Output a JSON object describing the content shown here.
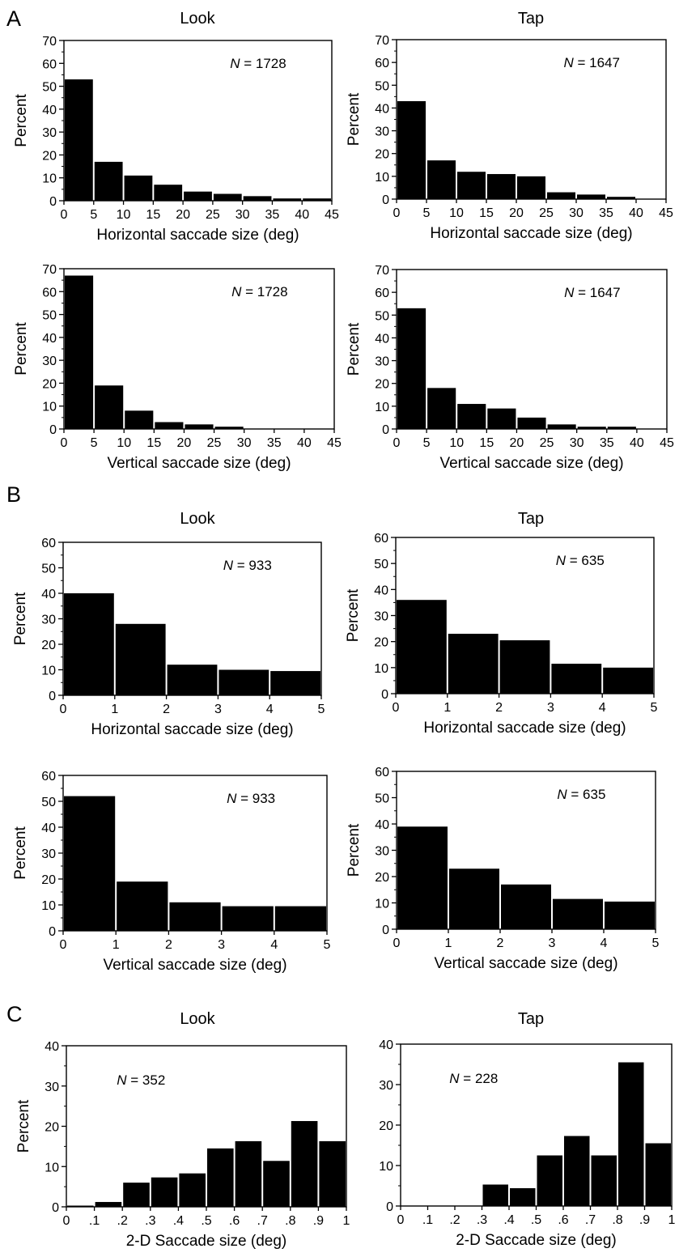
{
  "sections": [
    {
      "letter": "A",
      "titles": [
        "Look",
        "Tap"
      ]
    },
    {
      "letter": "B",
      "titles": [
        "Look",
        "Tap"
      ]
    },
    {
      "letter": "C",
      "titles": [
        "Look",
        "Tap"
      ]
    }
  ],
  "chart_data": [
    {
      "id": "A-look-horizontal",
      "type": "bar",
      "section": "A",
      "panel_title": "Look",
      "xlabel": "Horizontal saccade size (deg)",
      "ylabel": "Percent",
      "xlim": [
        0,
        45
      ],
      "ylim": [
        0,
        70
      ],
      "xticks": [
        "0",
        "5",
        "10",
        "15",
        "20",
        "25",
        "30",
        "35",
        "40",
        "45"
      ],
      "yticks": [
        "0",
        "10",
        "20",
        "30",
        "40",
        "50",
        "60",
        "70"
      ],
      "bin_edges": [
        0,
        5,
        10,
        15,
        20,
        25,
        30,
        35,
        40,
        45
      ],
      "values": [
        53,
        17,
        11,
        7,
        4,
        3,
        2,
        1,
        1
      ],
      "annotation": {
        "label": "N",
        "value": "= 1728"
      }
    },
    {
      "id": "A-tap-horizontal",
      "type": "bar",
      "section": "A",
      "panel_title": "Tap",
      "xlabel": "Horizontal saccade size (deg)",
      "ylabel": "Percent",
      "xlim": [
        0,
        45
      ],
      "ylim": [
        0,
        70
      ],
      "xticks": [
        "0",
        "5",
        "10",
        "15",
        "20",
        "25",
        "30",
        "35",
        "40",
        "45"
      ],
      "yticks": [
        "0",
        "10",
        "20",
        "30",
        "40",
        "50",
        "60",
        "70"
      ],
      "bin_edges": [
        0,
        5,
        10,
        15,
        20,
        25,
        30,
        35,
        40,
        45
      ],
      "values": [
        43,
        17,
        12,
        11,
        10,
        3,
        2,
        1,
        0
      ],
      "annotation": {
        "label": "N",
        "value": "= 1647"
      }
    },
    {
      "id": "A-look-vertical",
      "type": "bar",
      "section": "A",
      "panel_title": "",
      "xlabel": "Vertical saccade size (deg)",
      "ylabel": "Percent",
      "xlim": [
        0,
        45
      ],
      "ylim": [
        0,
        70
      ],
      "xticks": [
        "0",
        "5",
        "10",
        "15",
        "20",
        "25",
        "30",
        "35",
        "40",
        "45"
      ],
      "yticks": [
        "0",
        "10",
        "20",
        "30",
        "40",
        "50",
        "60",
        "70"
      ],
      "bin_edges": [
        0,
        5,
        10,
        15,
        20,
        25,
        30,
        35,
        40,
        45
      ],
      "values": [
        67,
        19,
        8,
        3,
        2,
        1,
        0,
        0,
        0
      ],
      "annotation": {
        "label": "N",
        "value": "= 1728"
      }
    },
    {
      "id": "A-tap-vertical",
      "type": "bar",
      "section": "A",
      "panel_title": "",
      "xlabel": "Vertical saccade size (deg)",
      "ylabel": "Percent",
      "xlim": [
        0,
        45
      ],
      "ylim": [
        0,
        70
      ],
      "xticks": [
        "0",
        "5",
        "10",
        "15",
        "20",
        "25",
        "30",
        "35",
        "40",
        "45"
      ],
      "yticks": [
        "0",
        "10",
        "20",
        "30",
        "40",
        "50",
        "60",
        "70"
      ],
      "bin_edges": [
        0,
        5,
        10,
        15,
        20,
        25,
        30,
        35,
        40,
        45
      ],
      "values": [
        53,
        18,
        11,
        9,
        5,
        2,
        1,
        1,
        0
      ],
      "annotation": {
        "label": "N",
        "value": "= 1647"
      }
    },
    {
      "id": "B-look-horizontal",
      "type": "bar",
      "section": "B",
      "panel_title": "Look",
      "xlabel": "Horizontal saccade size (deg)",
      "ylabel": "Percent",
      "xlim": [
        0,
        5
      ],
      "ylim": [
        0,
        60
      ],
      "xticks": [
        "0",
        "1",
        "2",
        "3",
        "4",
        "5"
      ],
      "yticks": [
        "0",
        "10",
        "20",
        "30",
        "40",
        "50",
        "60"
      ],
      "bin_edges": [
        0,
        1,
        2,
        3,
        4,
        5
      ],
      "values": [
        40,
        28,
        12,
        10,
        9.5
      ],
      "annotation": {
        "label": "N",
        "value": "= 933"
      }
    },
    {
      "id": "B-tap-horizontal",
      "type": "bar",
      "section": "B",
      "panel_title": "Tap",
      "xlabel": "Horizontal saccade size (deg)",
      "ylabel": "Percent",
      "xlim": [
        0,
        5
      ],
      "ylim": [
        0,
        60
      ],
      "xticks": [
        "0",
        "1",
        "2",
        "3",
        "4",
        "5"
      ],
      "yticks": [
        "0",
        "10",
        "20",
        "30",
        "40",
        "50",
        "60"
      ],
      "bin_edges": [
        0,
        1,
        2,
        3,
        4,
        5
      ],
      "values": [
        36,
        23,
        20.5,
        11.5,
        10
      ],
      "annotation": {
        "label": "N",
        "value": "= 635"
      }
    },
    {
      "id": "B-look-vertical",
      "type": "bar",
      "section": "B",
      "panel_title": "",
      "xlabel": "Vertical saccade size (deg)",
      "ylabel": "Percent",
      "xlim": [
        0,
        5
      ],
      "ylim": [
        0,
        60
      ],
      "xticks": [
        "0",
        "1",
        "2",
        "3",
        "4",
        "5"
      ],
      "yticks": [
        "0",
        "10",
        "20",
        "30",
        "40",
        "50",
        "60"
      ],
      "bin_edges": [
        0,
        1,
        2,
        3,
        4,
        5
      ],
      "values": [
        52,
        19,
        11,
        9.5,
        9.5
      ],
      "annotation": {
        "label": "N",
        "value": "= 933"
      }
    },
    {
      "id": "B-tap-vertical",
      "type": "bar",
      "section": "B",
      "panel_title": "",
      "xlabel": "Vertical saccade size (deg)",
      "ylabel": "Percent",
      "xlim": [
        0,
        5
      ],
      "ylim": [
        0,
        60
      ],
      "xticks": [
        "0",
        "1",
        "2",
        "3",
        "4",
        "5"
      ],
      "yticks": [
        "0",
        "10",
        "20",
        "30",
        "40",
        "50",
        "60"
      ],
      "bin_edges": [
        0,
        1,
        2,
        3,
        4,
        5
      ],
      "values": [
        39,
        23,
        17,
        11.5,
        10.5
      ],
      "annotation": {
        "label": "N",
        "value": "= 635"
      }
    },
    {
      "id": "C-look",
      "type": "bar",
      "section": "C",
      "panel_title": "Look",
      "xlabel": "2-D Saccade size (deg)",
      "ylabel": "Percent",
      "xlim": [
        0,
        1
      ],
      "ylim": [
        0,
        40
      ],
      "xticks": [
        "0",
        ".1",
        ".2",
        ".3",
        ".4",
        ".5",
        ".6",
        ".7",
        ".8",
        ".9",
        "1"
      ],
      "yticks": [
        "0",
        "10",
        "20",
        "30",
        "40"
      ],
      "bin_edges": [
        0,
        0.1,
        0.2,
        0.3,
        0.4,
        0.5,
        0.6,
        0.7,
        0.8,
        0.9,
        1.0
      ],
      "values": [
        0.3,
        1.2,
        6,
        7.3,
        8.3,
        14.5,
        16.3,
        11.4,
        21.3,
        16.3
      ],
      "annotation": {
        "label": "N",
        "value": "= 352"
      }
    },
    {
      "id": "C-tap",
      "type": "bar",
      "section": "C",
      "panel_title": "Tap",
      "xlabel": "2-D Saccade size (deg)",
      "ylabel": "",
      "xlim": [
        0,
        1
      ],
      "ylim": [
        0,
        40
      ],
      "xticks": [
        "0",
        ".1",
        ".2",
        ".3",
        ".4",
        ".5",
        ".6",
        ".7",
        ".8",
        ".9",
        "1"
      ],
      "yticks": [
        "0",
        "10",
        "20",
        "30",
        "40"
      ],
      "bin_edges": [
        0,
        0.1,
        0.2,
        0.3,
        0.4,
        0.5,
        0.6,
        0.7,
        0.8,
        0.9,
        1.0
      ],
      "values": [
        0,
        0,
        0,
        5.3,
        4.4,
        12.5,
        17.3,
        12.5,
        35.5,
        15.5
      ],
      "annotation": {
        "label": "N",
        "value": "= 228"
      }
    }
  ]
}
